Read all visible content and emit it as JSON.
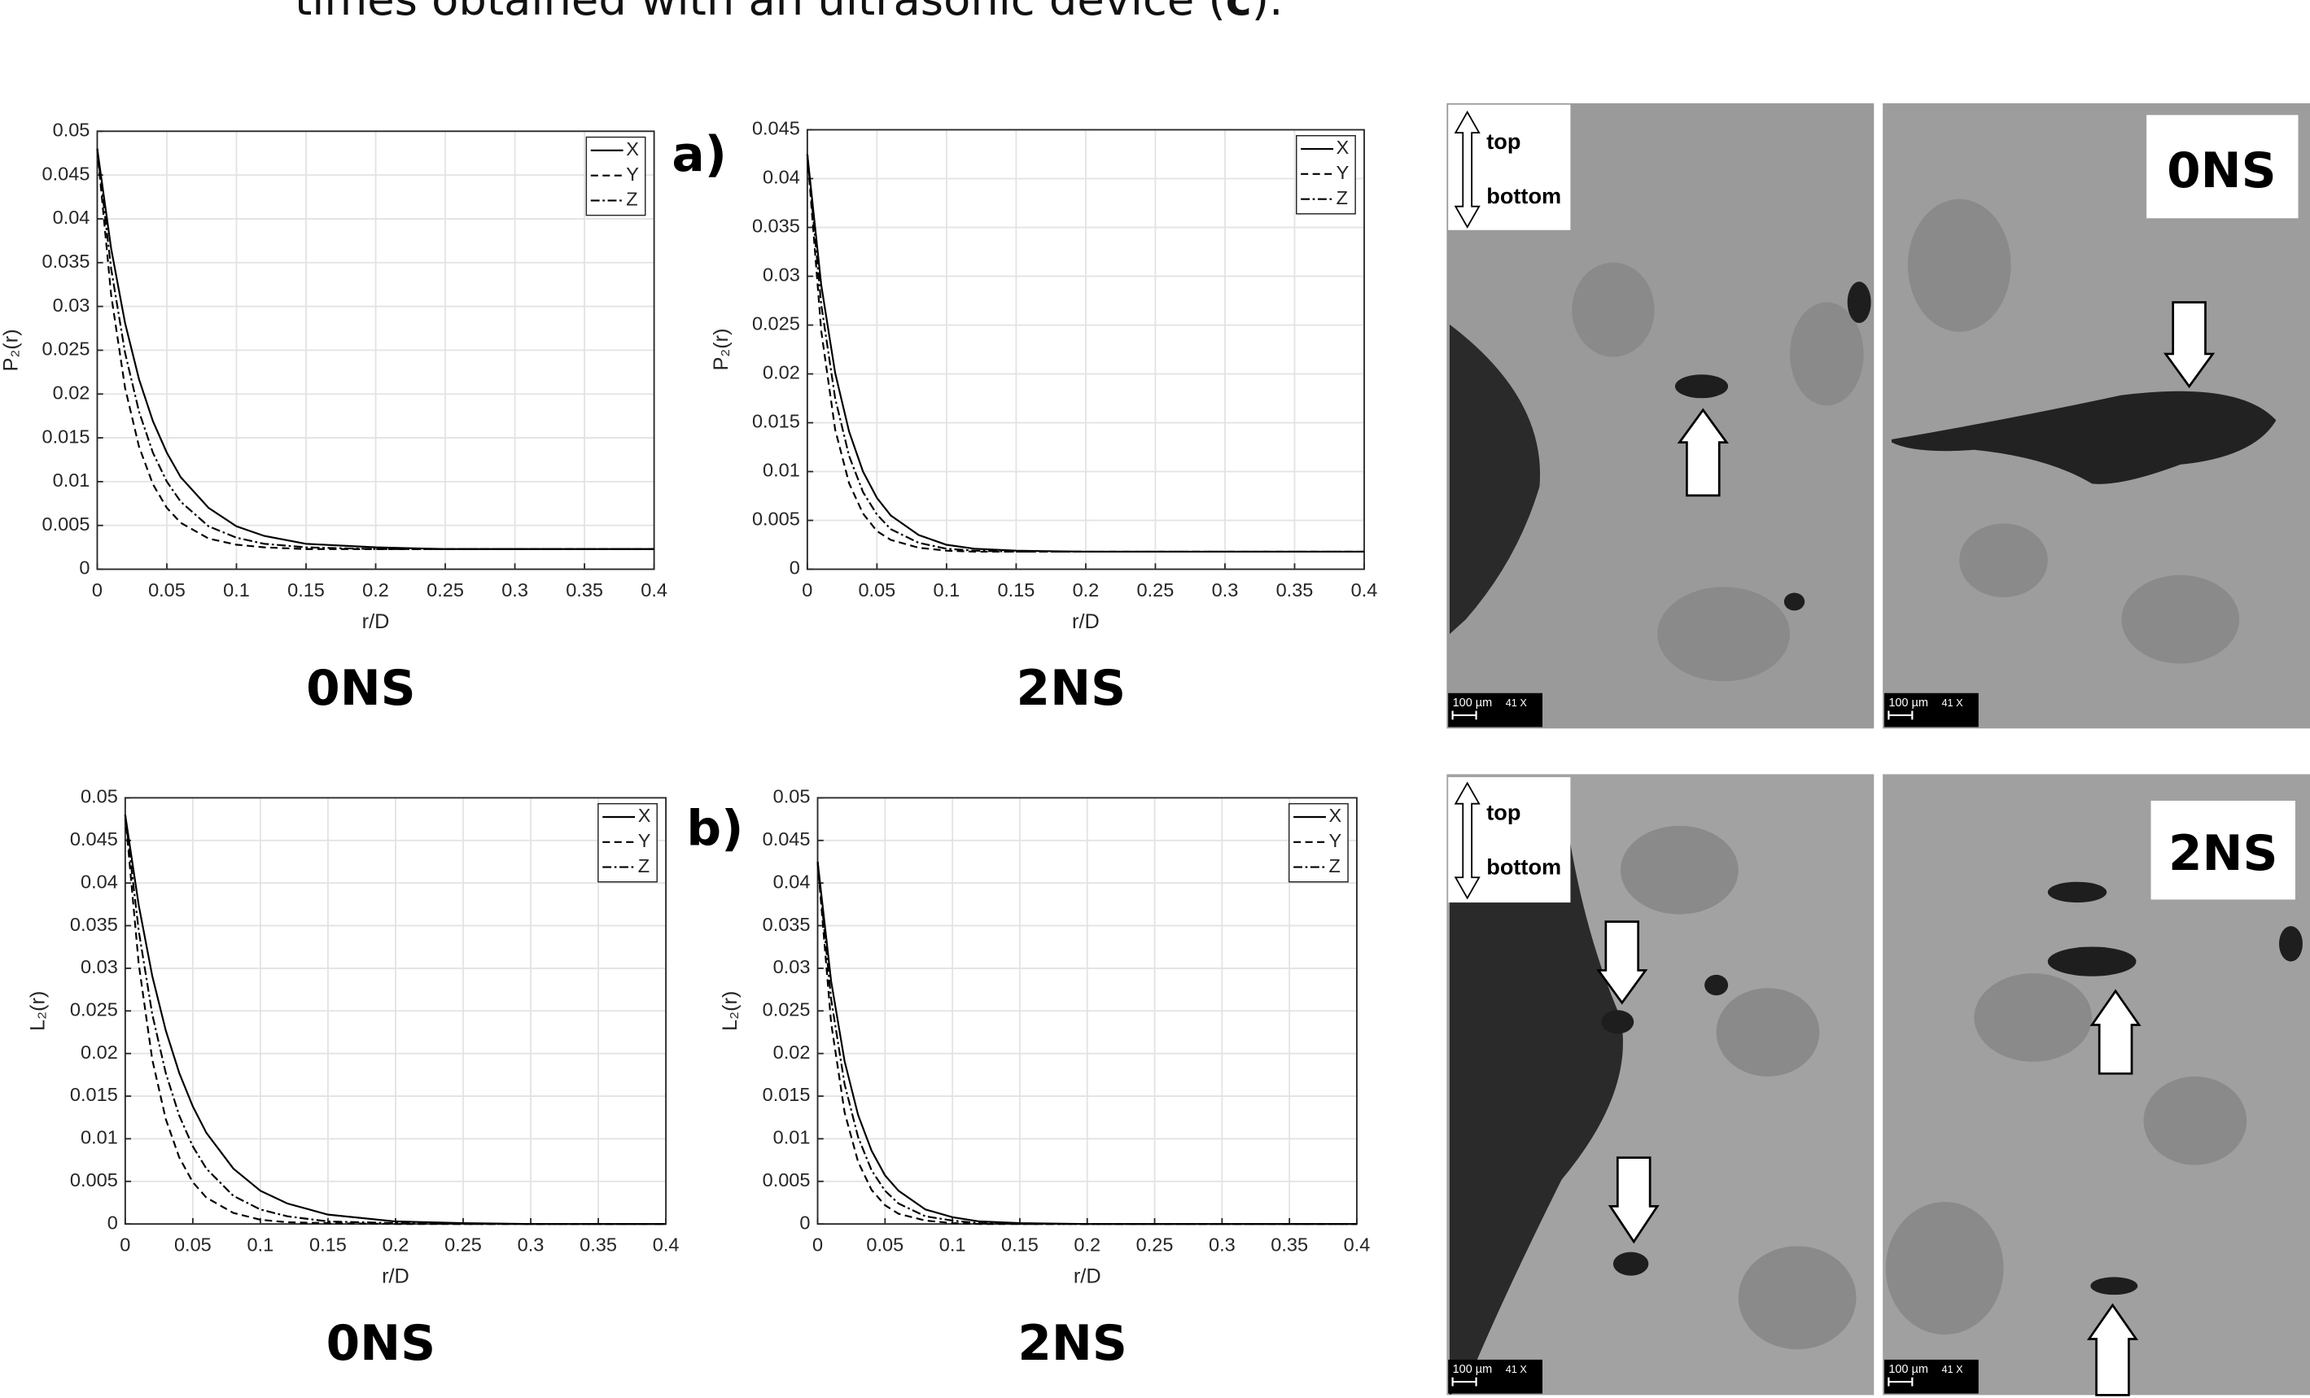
{
  "caption": {
    "before": "times obtained with an ultrasonic device (",
    "bold": "c",
    "after": ")."
  },
  "panel_labels": [
    "a)",
    "b)"
  ],
  "micrographs": {
    "top": "top",
    "bottom": "bottom",
    "scale": "100 µm",
    "magnification": "41 X",
    "samples": [
      "0NS",
      "2NS"
    ]
  },
  "chart_data": [
    {
      "type": "line",
      "title": "0NS",
      "x_label": "r/D",
      "y_label": "P₂(r)",
      "x": [
        0,
        0.01,
        0.02,
        0.03,
        0.04,
        0.05,
        0.06,
        0.08,
        0.1,
        0.12,
        0.15,
        0.2,
        0.25,
        0.3,
        0.35,
        0.4
      ],
      "xlim": [
        0,
        0.4
      ],
      "xticks": [
        0,
        0.05,
        0.1,
        0.15,
        0.2,
        0.25,
        0.3,
        0.35,
        0.4
      ],
      "ylim": [
        0,
        0.05
      ],
      "yticks": [
        0,
        0.005,
        0.01,
        0.015,
        0.02,
        0.025,
        0.03,
        0.035,
        0.04,
        0.045,
        0.05
      ],
      "grid": true,
      "legend": "upper right",
      "series": [
        {
          "name": "X",
          "color": "#000000",
          "dash": "solid",
          "values": [
            0.048,
            0.0366,
            0.0281,
            0.0217,
            0.0169,
            0.0133,
            0.0105,
            0.007,
            0.0049,
            0.0038,
            0.0029,
            0.0025,
            0.0023,
            0.0023,
            0.0023,
            0.0023
          ]
        },
        {
          "name": "Y",
          "color": "#000000",
          "dash": "dashed",
          "values": [
            0.048,
            0.0313,
            0.0207,
            0.014,
            0.0097,
            0.007,
            0.0053,
            0.0035,
            0.0028,
            0.0025,
            0.0023,
            0.0023,
            0.0023,
            0.0023,
            0.0023,
            0.0023
          ]
        },
        {
          "name": "Z",
          "color": "#000000",
          "dash": "dashdot",
          "values": [
            0.048,
            0.0343,
            0.0247,
            0.018,
            0.0133,
            0.01,
            0.0077,
            0.0049,
            0.0036,
            0.0029,
            0.0025,
            0.0023,
            0.0023,
            0.0023,
            0.0023,
            0.0023
          ]
        }
      ]
    },
    {
      "type": "line",
      "title": "2NS",
      "x_label": "r/D",
      "y_label": "P₂(r)",
      "x": [
        0,
        0.01,
        0.02,
        0.03,
        0.04,
        0.05,
        0.06,
        0.08,
        0.1,
        0.12,
        0.15,
        0.2,
        0.25,
        0.3,
        0.35,
        0.4
      ],
      "xlim": [
        0,
        0.4
      ],
      "xticks": [
        0,
        0.05,
        0.1,
        0.15,
        0.2,
        0.25,
        0.3,
        0.35,
        0.4
      ],
      "ylim": [
        0,
        0.045
      ],
      "yticks": [
        0,
        0.005,
        0.01,
        0.015,
        0.02,
        0.025,
        0.03,
        0.035,
        0.04,
        0.045
      ],
      "grid": true,
      "legend": "upper right",
      "series": [
        {
          "name": "X",
          "color": "#000000",
          "dash": "solid",
          "values": [
            0.0425,
            0.0291,
            0.0201,
            0.0141,
            0.01,
            0.0073,
            0.0055,
            0.0035,
            0.0025,
            0.0021,
            0.0019,
            0.0018,
            0.0018,
            0.0018,
            0.0018,
            0.0018
          ]
        },
        {
          "name": "Y",
          "color": "#000000",
          "dash": "dashed",
          "values": [
            0.0425,
            0.0244,
            0.0143,
            0.0088,
            0.0057,
            0.0039,
            0.003,
            0.0022,
            0.0019,
            0.0018,
            0.0018,
            0.0018,
            0.0018,
            0.0018,
            0.0018,
            0.0018
          ]
        },
        {
          "name": "Z",
          "color": "#000000",
          "dash": "dashdot",
          "values": [
            0.0425,
            0.0271,
            0.0175,
            0.0116,
            0.0079,
            0.0056,
            0.0041,
            0.0027,
            0.0021,
            0.0019,
            0.0018,
            0.0018,
            0.0018,
            0.0018,
            0.0018,
            0.0018
          ]
        }
      ]
    },
    {
      "type": "line",
      "title": "0NS",
      "x_label": "r/D",
      "y_label": "L₂(r)",
      "x": [
        0,
        0.01,
        0.02,
        0.03,
        0.04,
        0.05,
        0.06,
        0.08,
        0.1,
        0.12,
        0.15,
        0.2,
        0.25,
        0.3,
        0.35,
        0.4
      ],
      "xlim": [
        0,
        0.4
      ],
      "xticks": [
        0,
        0.05,
        0.1,
        0.15,
        0.2,
        0.25,
        0.3,
        0.35,
        0.4
      ],
      "ylim": [
        0,
        0.05
      ],
      "yticks": [
        0,
        0.005,
        0.01,
        0.015,
        0.02,
        0.025,
        0.03,
        0.035,
        0.04,
        0.045,
        0.05
      ],
      "grid": true,
      "legend": "upper right",
      "series": [
        {
          "name": "X",
          "color": "#000000",
          "dash": "solid",
          "values": [
            0.048,
            0.0374,
            0.0291,
            0.0227,
            0.0177,
            0.0138,
            0.0107,
            0.0065,
            0.0039,
            0.0024,
            0.0011,
            0.0003,
            0.0001,
            0,
            0,
            0
          ]
        },
        {
          "name": "Y",
          "color": "#000000",
          "dash": "dashed",
          "values": [
            0.048,
            0.0305,
            0.0193,
            0.0123,
            0.0078,
            0.0049,
            0.0031,
            0.0013,
            0.0005,
            0.0002,
            0.0001,
            0,
            0,
            0,
            0,
            0
          ]
        },
        {
          "name": "Z",
          "color": "#000000",
          "dash": "dashdot",
          "values": [
            0.048,
            0.0344,
            0.0246,
            0.0177,
            0.0127,
            0.0091,
            0.0065,
            0.0033,
            0.0017,
            0.0009,
            0.0003,
            0.0001,
            0,
            0,
            0,
            0
          ]
        }
      ]
    },
    {
      "type": "line",
      "title": "2NS",
      "x_label": "r/D",
      "y_label": "L₂(r)",
      "x": [
        0,
        0.01,
        0.02,
        0.03,
        0.04,
        0.05,
        0.06,
        0.08,
        0.1,
        0.12,
        0.15,
        0.2,
        0.25,
        0.3,
        0.35,
        0.4
      ],
      "xlim": [
        0,
        0.4
      ],
      "xticks": [
        0,
        0.05,
        0.1,
        0.15,
        0.2,
        0.25,
        0.3,
        0.35,
        0.4
      ],
      "ylim": [
        0,
        0.05
      ],
      "yticks": [
        0,
        0.005,
        0.01,
        0.015,
        0.02,
        0.025,
        0.03,
        0.035,
        0.04,
        0.045,
        0.05
      ],
      "grid": true,
      "legend": "upper right",
      "series": [
        {
          "name": "X",
          "color": "#000000",
          "dash": "solid",
          "values": [
            0.0425,
            0.0285,
            0.0191,
            0.0128,
            0.0086,
            0.0057,
            0.0039,
            0.0017,
            0.0008,
            0.0003,
            0.0001,
            0,
            0,
            0,
            0,
            0
          ]
        },
        {
          "name": "Y",
          "color": "#000000",
          "dash": "dashed",
          "values": [
            0.0425,
            0.0236,
            0.0131,
            0.0073,
            0.004,
            0.0022,
            0.0012,
            0.0004,
            0.0001,
            0,
            0,
            0,
            0,
            0,
            0,
            0
          ]
        },
        {
          "name": "Z",
          "color": "#000000",
          "dash": "dashdot",
          "values": [
            0.0425,
            0.0264,
            0.0164,
            0.0102,
            0.0063,
            0.0039,
            0.0024,
            0.0009,
            0.0004,
            0.0001,
            0,
            0,
            0,
            0,
            0,
            0
          ]
        }
      ]
    }
  ]
}
